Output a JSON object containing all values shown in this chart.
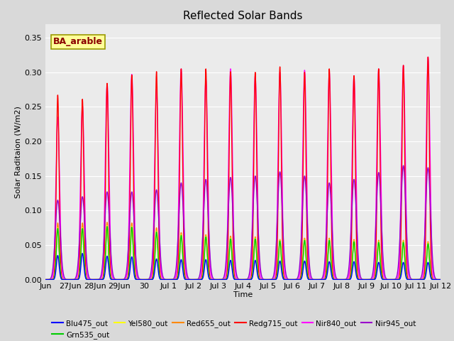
{
  "title": "Reflected Solar Bands",
  "xlabel": "Time",
  "ylabel": "Solar Raditaion (W/m2)",
  "ylim": [
    0.0,
    0.37
  ],
  "yticks": [
    0.0,
    0.05,
    0.1,
    0.15,
    0.2,
    0.25,
    0.3,
    0.35
  ],
  "annotation_text": "BA_arable",
  "annotation_box_facecolor": "#ffff99",
  "annotation_text_color": "#8B0000",
  "annotation_edge_color": "#999900",
  "bg_color": "#d9d9d9",
  "plot_bg_color": "#ebebeb",
  "n_days": 16,
  "sigma_narrow": 0.055,
  "sigma_medium": 0.075,
  "sigma_wide": 0.1,
  "day_peaks_redg": [
    0.267,
    0.261,
    0.284,
    0.296,
    0.301,
    0.305,
    0.305,
    0.301,
    0.3,
    0.308,
    0.3,
    0.305,
    0.295,
    0.305,
    0.31,
    0.322
  ],
  "day_peaks_nir840": [
    0.235,
    0.252,
    0.283,
    0.297,
    0.275,
    0.305,
    0.29,
    0.305,
    0.295,
    0.3,
    0.303,
    0.3,
    0.295,
    0.305,
    0.31,
    0.322
  ],
  "day_peaks_nir945": [
    0.115,
    0.12,
    0.127,
    0.127,
    0.13,
    0.14,
    0.145,
    0.148,
    0.15,
    0.156,
    0.15,
    0.14,
    0.145,
    0.155,
    0.165,
    0.162
  ],
  "day_peaks_red": [
    0.082,
    0.082,
    0.083,
    0.082,
    0.075,
    0.068,
    0.065,
    0.063,
    0.062,
    0.058,
    0.06,
    0.06,
    0.058,
    0.057,
    0.057,
    0.055
  ],
  "day_peaks_yel": [
    0.075,
    0.075,
    0.078,
    0.077,
    0.07,
    0.065,
    0.063,
    0.06,
    0.06,
    0.057,
    0.058,
    0.058,
    0.056,
    0.055,
    0.055,
    0.053
  ],
  "day_peaks_grn": [
    0.074,
    0.074,
    0.077,
    0.076,
    0.069,
    0.064,
    0.062,
    0.059,
    0.059,
    0.056,
    0.057,
    0.057,
    0.055,
    0.054,
    0.054,
    0.052
  ],
  "day_peaks_blu": [
    0.035,
    0.038,
    0.034,
    0.033,
    0.03,
    0.029,
    0.029,
    0.028,
    0.028,
    0.027,
    0.027,
    0.026,
    0.026,
    0.025,
    0.025,
    0.025
  ],
  "xtick_labels": [
    "Jun",
    "27Jun",
    "28Jun",
    "29Jun",
    "30",
    "Jul 1",
    "Jul 2",
    "Jul 3",
    "Jul 4",
    "Jul 5",
    "Jul 6",
    "Jul 7",
    "Jul 8",
    "Jul 9",
    "Jul 10",
    "Jul 11",
    "Jul 12"
  ],
  "legend_entries": [
    {
      "label": "Blu475_out",
      "color": "#0000ff"
    },
    {
      "label": "Grn535_out",
      "color": "#00cc00"
    },
    {
      "label": "Yel580_out",
      "color": "#ffff00"
    },
    {
      "label": "Red655_out",
      "color": "#ff8800"
    },
    {
      "label": "Redg715_out",
      "color": "#ff0000"
    },
    {
      "label": "Nir840_out",
      "color": "#ff00ff"
    },
    {
      "label": "Nir945_out",
      "color": "#9900cc"
    }
  ]
}
